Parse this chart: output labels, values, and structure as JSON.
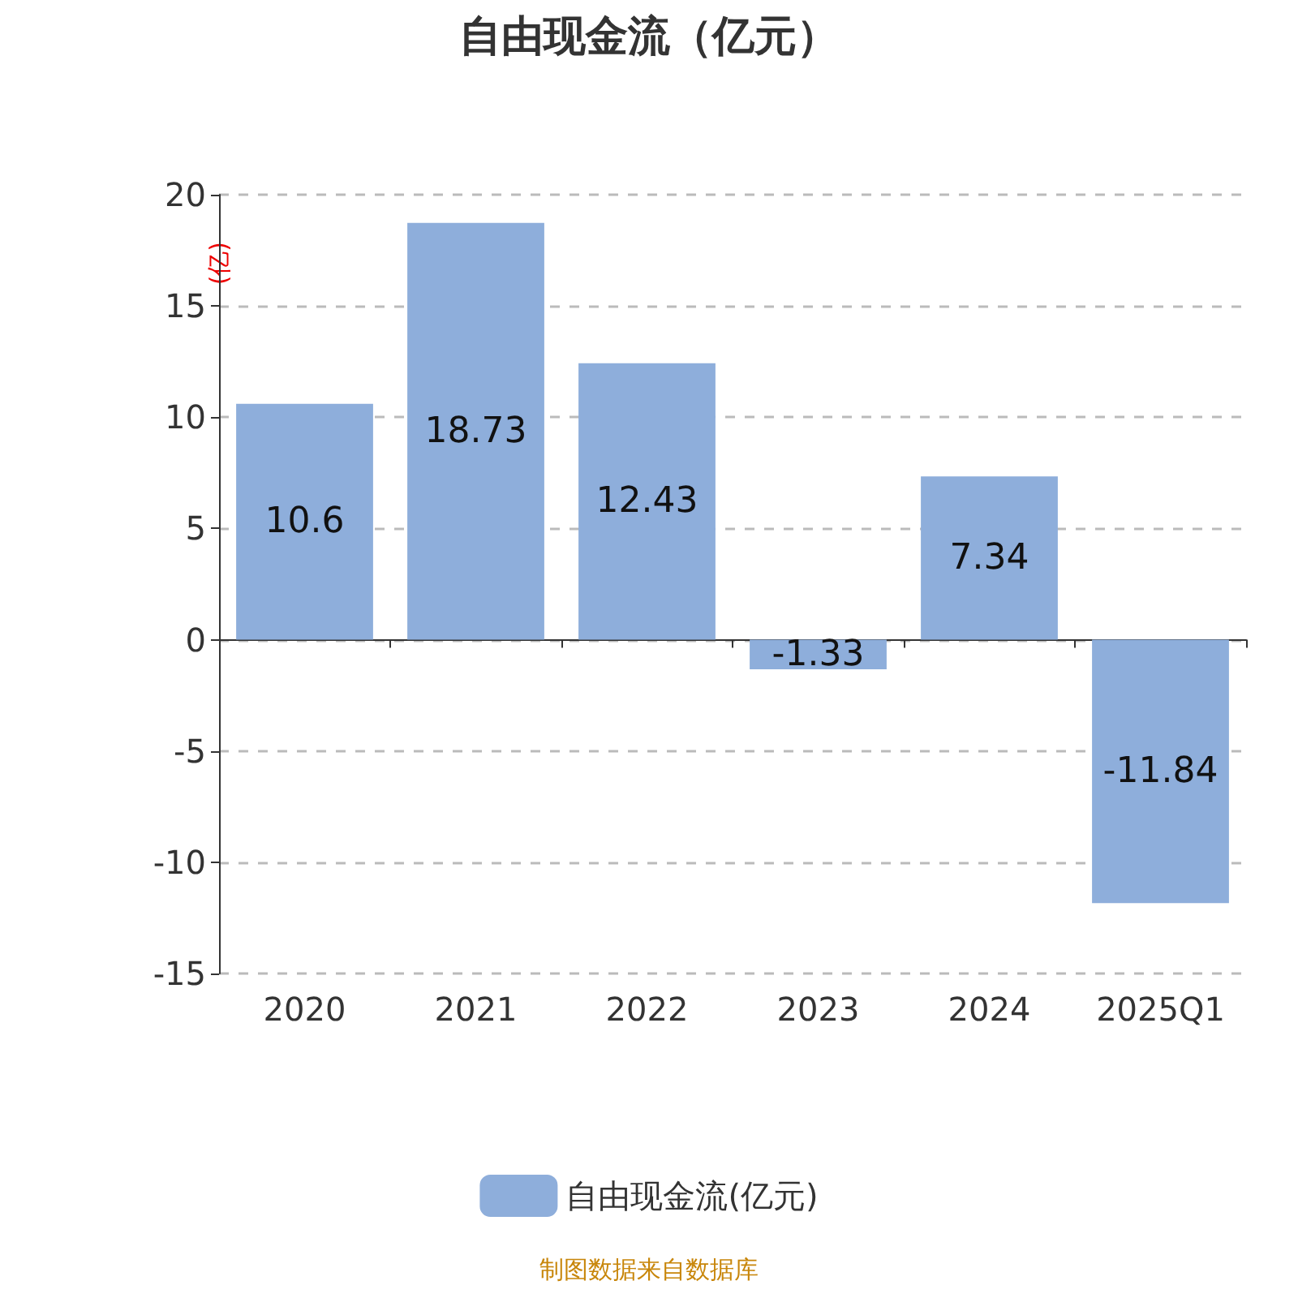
{
  "chart_data": {
    "type": "bar",
    "title": "自由现金流（亿元）",
    "ylabel": "(亿)",
    "categories": [
      "2020",
      "2021",
      "2022",
      "2023",
      "2024",
      "2025Q1"
    ],
    "series": [
      {
        "name": "自由现金流(亿元)",
        "color": "#8eaedb",
        "values": [
          10.6,
          18.73,
          12.43,
          -1.33,
          7.34,
          -11.84
        ]
      }
    ],
    "ylim": [
      -15,
      20
    ],
    "yticks": [
      -15,
      -10,
      -5,
      0,
      5,
      10,
      15,
      20
    ],
    "grid": "y",
    "legend": "bottom",
    "data_labels": true,
    "annotations": [
      "制图数据来自数据库"
    ]
  }
}
